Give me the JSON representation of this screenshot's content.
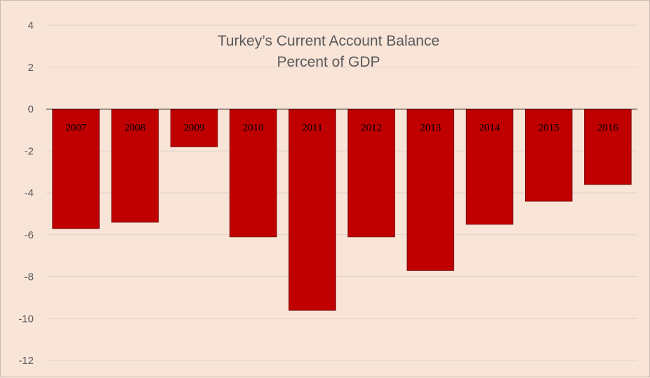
{
  "chart_data": {
    "type": "bar",
    "title": "Turkey’s Current Account Balance",
    "subtitle": "Percent of GDP",
    "categories": [
      "2007",
      "2008",
      "2009",
      "2010",
      "2011",
      "2012",
      "2013",
      "2014",
      "2015",
      "2016"
    ],
    "series": [
      {
        "values": [
          -5.7,
          -5.4,
          -1.8,
          -6.1,
          -9.6,
          -6.1,
          -7.7,
          -5.5,
          -4.4,
          -3.6
        ]
      }
    ],
    "ylim": [
      -12,
      4
    ],
    "yticks": [
      "4",
      "2",
      "0",
      "-2",
      "-4",
      "-6",
      "-8",
      "-10",
      "-12"
    ],
    "grid": true,
    "legend": "none",
    "colors": {
      "bar": "#c00000",
      "background": "#f9e4d8"
    }
  }
}
